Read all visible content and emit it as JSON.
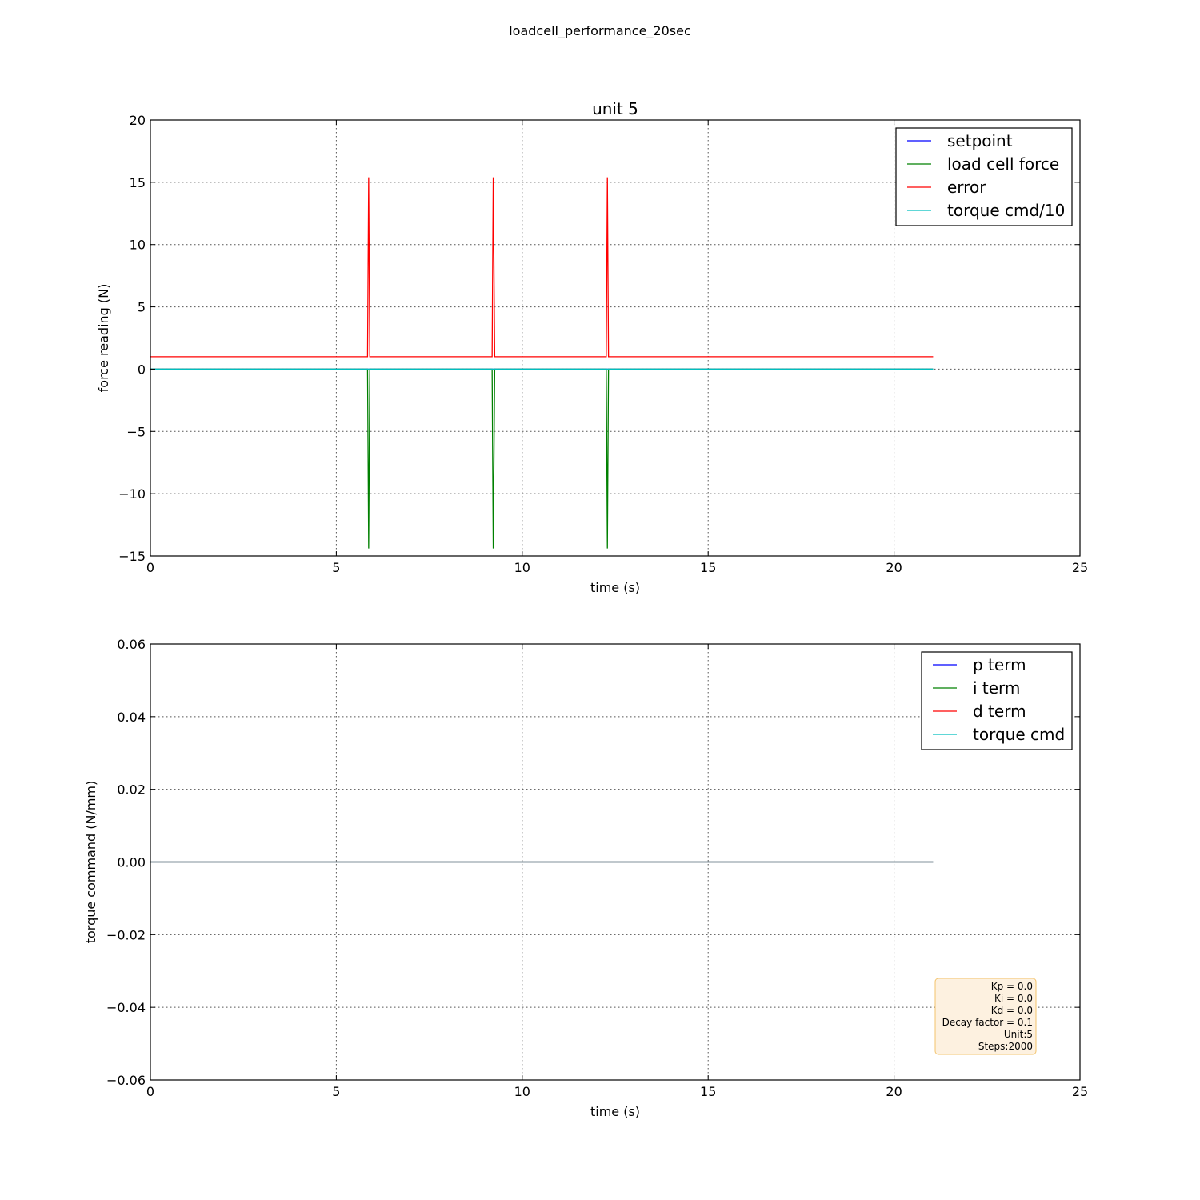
{
  "figure": {
    "suptitle": "loadcell_performance_20sec"
  },
  "colors": {
    "setpoint": "#0000ff",
    "load_cell_force": "#008000",
    "error": "#ff0000",
    "torque_cmd": "#00bfbf",
    "info_box_fill": "#fdf1e0",
    "info_box_border": "#f3c36b"
  },
  "chart_data": [
    {
      "type": "line",
      "title": "unit 5",
      "xlabel": "time (s)",
      "ylabel": "force reading (N)",
      "xlim": [
        0,
        25
      ],
      "ylim": [
        -15,
        20
      ],
      "xticks": [
        0,
        5,
        10,
        15,
        20,
        25
      ],
      "xtick_labels": [
        "0",
        "5",
        "10",
        "15",
        "20",
        "25"
      ],
      "yticks": [
        20,
        15,
        10,
        5,
        0,
        -5,
        -10,
        -15
      ],
      "ytick_labels": [
        "20",
        "15",
        "10",
        "5",
        "0",
        "−5",
        "−10",
        "−15"
      ],
      "grid": true,
      "legend_position": "top-right",
      "series": [
        {
          "name": "setpoint",
          "color": "#0000ff",
          "x": [
            0,
            21.05
          ],
          "y": [
            0,
            0
          ]
        },
        {
          "name": "load cell force",
          "color": "#008000",
          "x": [
            0,
            5.84,
            5.87,
            5.9,
            9.19,
            9.22,
            9.26,
            12.26,
            12.29,
            12.32,
            21.05
          ],
          "y": [
            0,
            0,
            -14.4,
            0,
            0,
            -14.4,
            0,
            0,
            -14.4,
            0,
            0
          ]
        },
        {
          "name": "error",
          "color": "#ff0000",
          "x": [
            0,
            5.84,
            5.87,
            5.9,
            9.19,
            9.22,
            9.26,
            12.26,
            12.29,
            12.32,
            21.05
          ],
          "y": [
            1.0,
            1.0,
            15.4,
            1.0,
            1.0,
            15.4,
            1.0,
            1.0,
            15.4,
            1.0,
            1.0
          ]
        },
        {
          "name": "torque cmd/10",
          "color": "#00bfbf",
          "x": [
            0,
            21.05
          ],
          "y": [
            0,
            0
          ]
        }
      ]
    },
    {
      "type": "line",
      "title": "",
      "xlabel": "time (s)",
      "ylabel": "torque command (N/mm)",
      "xlim": [
        0,
        25
      ],
      "ylim": [
        -0.06,
        0.06
      ],
      "xticks": [
        0,
        5,
        10,
        15,
        20,
        25
      ],
      "xtick_labels": [
        "0",
        "5",
        "10",
        "15",
        "20",
        "25"
      ],
      "yticks": [
        0.06,
        0.04,
        0.02,
        0.0,
        -0.02,
        -0.04,
        -0.06
      ],
      "ytick_labels": [
        "0.06",
        "0.04",
        "0.02",
        "0.00",
        "−0.02",
        "−0.04",
        "−0.06"
      ],
      "grid": true,
      "legend_position": "top-right",
      "series": [
        {
          "name": "p term",
          "color": "#0000ff",
          "x": [
            0,
            21.05
          ],
          "y": [
            0,
            0
          ]
        },
        {
          "name": "i term",
          "color": "#008000",
          "x": [
            0,
            21.05
          ],
          "y": [
            0,
            0
          ]
        },
        {
          "name": "d term",
          "color": "#ff0000",
          "x": [
            0,
            21.05
          ],
          "y": [
            0,
            0
          ]
        },
        {
          "name": "torque cmd",
          "color": "#00bfbf",
          "x": [
            0,
            21.05
          ],
          "y": [
            0,
            0
          ]
        }
      ],
      "annotation_lines": [
        "Kp = 0.0",
        "Ki = 0.0",
        "Kd = 0.0",
        "Decay factor = 0.1",
        "Unit:5",
        "Steps:2000"
      ]
    }
  ]
}
